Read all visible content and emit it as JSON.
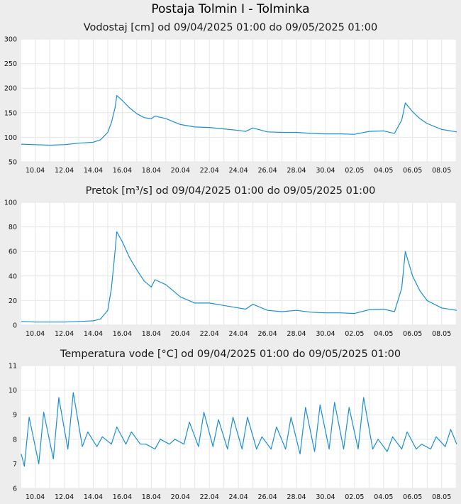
{
  "page": {
    "title": "Postaja Tolmin I - Tolminka"
  },
  "charts": [
    {
      "title": "Vodostaj [cm] od 09/04/2025 01:00 do 09/05/2025 01:00",
      "yticks": [
        "50",
        "100",
        "150",
        "200",
        "250",
        "300"
      ],
      "xticks": [
        "10.04",
        "12.04",
        "14.04",
        "16.04",
        "18.04",
        "20.04",
        "22.04",
        "24.04",
        "26.04",
        "28.04",
        "30.04",
        "02.05",
        "04.05",
        "06.05",
        "08.05"
      ],
      "line_color": "#1a8ed6"
    },
    {
      "title": "Pretok [m³/s] od 09/04/2025 01:00 do 09/05/2025 01:00",
      "yticks": [
        "0",
        "20",
        "40",
        "60",
        "80",
        "100"
      ],
      "xticks": [
        "10.04",
        "12.04",
        "14.04",
        "16.04",
        "18.04",
        "20.04",
        "22.04",
        "24.04",
        "26.04",
        "28.04",
        "30.04",
        "02.05",
        "04.05",
        "06.05",
        "08.05"
      ],
      "line_color": "#1a8ed6"
    },
    {
      "title": "Temperatura vode [°C] od 09/04/2025 01:00 do 09/05/2025 01:00",
      "yticks": [
        "6",
        "7",
        "8",
        "9",
        "10",
        "11"
      ],
      "xticks": [
        "10.04",
        "12.04",
        "14.04",
        "16.04",
        "18.04",
        "20.04",
        "22.04",
        "24.04",
        "26.04",
        "28.04",
        "30.04",
        "02.05",
        "04.05",
        "06.05",
        "08.05"
      ],
      "line_color": "#1a8ed6"
    }
  ],
  "chart_data": [
    {
      "type": "line",
      "title": "Vodostaj [cm] od 09/04/2025 01:00 do 09/05/2025 01:00",
      "ylim": [
        50,
        300
      ],
      "xlim": [
        "2025-04-09 01:00",
        "2025-05-09 01:00"
      ],
      "grid": true,
      "x": [
        "2025-04-09 01:00",
        "2025-04-10 00:00",
        "2025-04-11 00:00",
        "2025-04-12 00:00",
        "2025-04-13 00:00",
        "2025-04-14 00:00",
        "2025-04-14 12:00",
        "2025-04-15 00:00",
        "2025-04-15 06:00",
        "2025-04-15 12:00",
        "2025-04-15 15:00",
        "2025-04-16 00:00",
        "2025-04-16 12:00",
        "2025-04-17 00:00",
        "2025-04-17 12:00",
        "2025-04-18 00:00",
        "2025-04-18 06:00",
        "2025-04-19 00:00",
        "2025-04-20 00:00",
        "2025-04-21 00:00",
        "2025-04-22 00:00",
        "2025-04-23 00:00",
        "2025-04-24 00:00",
        "2025-04-24 12:00",
        "2025-04-25 00:00",
        "2025-04-26 00:00",
        "2025-04-27 00:00",
        "2025-04-28 00:00",
        "2025-04-29 00:00",
        "2025-04-30 00:00",
        "2025-05-01 00:00",
        "2025-05-02 00:00",
        "2025-05-03 00:00",
        "2025-05-04 00:00",
        "2025-05-04 18:00",
        "2025-05-05 06:00",
        "2025-05-05 12:00",
        "2025-05-06 00:00",
        "2025-05-06 12:00",
        "2025-05-07 00:00",
        "2025-05-08 00:00",
        "2025-05-09 01:00"
      ],
      "values": [
        86,
        85,
        84,
        85,
        88,
        90,
        95,
        110,
        130,
        160,
        185,
        175,
        160,
        148,
        140,
        138,
        143,
        138,
        126,
        121,
        120,
        117,
        114,
        112,
        119,
        111,
        110,
        110,
        108,
        107,
        107,
        106,
        112,
        113,
        108,
        135,
        170,
        152,
        138,
        128,
        116,
        111
      ]
    },
    {
      "type": "line",
      "title": "Pretok [m³/s] od 09/04/2025 01:00 do 09/05/2025 01:00",
      "ylim": [
        0,
        100
      ],
      "xlim": [
        "2025-04-09 01:00",
        "2025-05-09 01:00"
      ],
      "grid": true,
      "x": [
        "2025-04-09 01:00",
        "2025-04-10 00:00",
        "2025-04-11 00:00",
        "2025-04-12 00:00",
        "2025-04-13 00:00",
        "2025-04-14 00:00",
        "2025-04-14 12:00",
        "2025-04-15 00:00",
        "2025-04-15 06:00",
        "2025-04-15 12:00",
        "2025-04-15 15:00",
        "2025-04-16 00:00",
        "2025-04-16 12:00",
        "2025-04-17 00:00",
        "2025-04-17 12:00",
        "2025-04-18 00:00",
        "2025-04-18 06:00",
        "2025-04-19 00:00",
        "2025-04-20 00:00",
        "2025-04-21 00:00",
        "2025-04-22 00:00",
        "2025-04-23 00:00",
        "2025-04-24 00:00",
        "2025-04-24 12:00",
        "2025-04-25 00:00",
        "2025-04-26 00:00",
        "2025-04-27 00:00",
        "2025-04-28 00:00",
        "2025-04-29 00:00",
        "2025-04-30 00:00",
        "2025-05-01 00:00",
        "2025-05-02 00:00",
        "2025-05-03 00:00",
        "2025-05-04 00:00",
        "2025-05-04 18:00",
        "2025-05-05 06:00",
        "2025-05-05 12:00",
        "2025-05-06 00:00",
        "2025-05-06 12:00",
        "2025-05-07 00:00",
        "2025-05-08 00:00",
        "2025-05-09 01:00"
      ],
      "values": [
        3,
        2.5,
        2.5,
        2.5,
        3,
        3.5,
        5,
        12,
        30,
        60,
        76,
        68,
        55,
        45,
        36,
        31,
        37,
        33,
        23,
        18,
        18,
        16,
        14,
        13,
        17,
        12,
        11,
        12,
        10.5,
        10,
        10,
        9.5,
        12.5,
        13,
        11,
        30,
        60,
        40,
        28,
        20,
        14,
        12
      ]
    },
    {
      "type": "line",
      "title": "Temperatura vode [°C] od 09/04/2025 01:00 do 09/05/2025 01:00",
      "ylim": [
        6,
        11
      ],
      "xlim": [
        "2025-04-09 01:00",
        "2025-05-09 01:00"
      ],
      "grid": true,
      "x": [
        "2025-04-09 01:00",
        "2025-04-09 06:00",
        "2025-04-09 14:00",
        "2025-04-10 06:00",
        "2025-04-10 14:00",
        "2025-04-11 06:00",
        "2025-04-11 15:00",
        "2025-04-12 06:00",
        "2025-04-12 15:00",
        "2025-04-13 06:00",
        "2025-04-13 15:00",
        "2025-04-14 06:00",
        "2025-04-14 15:00",
        "2025-04-15 06:00",
        "2025-04-15 15:00",
        "2025-04-16 06:00",
        "2025-04-16 15:00",
        "2025-04-17 06:00",
        "2025-04-17 15:00",
        "2025-04-18 06:00",
        "2025-04-18 15:00",
        "2025-04-19 06:00",
        "2025-04-19 15:00",
        "2025-04-20 06:00",
        "2025-04-20 15:00",
        "2025-04-21 06:00",
        "2025-04-21 15:00",
        "2025-04-22 06:00",
        "2025-04-22 15:00",
        "2025-04-23 06:00",
        "2025-04-23 15:00",
        "2025-04-24 06:00",
        "2025-04-24 15:00",
        "2025-04-25 06:00",
        "2025-04-25 15:00",
        "2025-04-26 06:00",
        "2025-04-26 15:00",
        "2025-04-27 06:00",
        "2025-04-27 15:00",
        "2025-04-28 06:00",
        "2025-04-28 15:00",
        "2025-04-29 06:00",
        "2025-04-29 15:00",
        "2025-04-30 06:00",
        "2025-04-30 15:00",
        "2025-05-01 06:00",
        "2025-05-01 15:00",
        "2025-05-02 06:00",
        "2025-05-02 15:00",
        "2025-05-03 06:00",
        "2025-05-03 15:00",
        "2025-05-04 06:00",
        "2025-05-04 15:00",
        "2025-05-05 06:00",
        "2025-05-05 15:00",
        "2025-05-06 06:00",
        "2025-05-06 15:00",
        "2025-05-07 06:00",
        "2025-05-07 15:00",
        "2025-05-08 06:00",
        "2025-05-08 15:00",
        "2025-05-09 01:00"
      ],
      "values": [
        7.4,
        6.9,
        8.9,
        7.0,
        9.1,
        7.2,
        9.7,
        7.6,
        9.9,
        7.7,
        8.3,
        7.7,
        8.1,
        7.8,
        8.5,
        7.8,
        8.3,
        7.8,
        7.8,
        7.6,
        8.0,
        7.8,
        8.0,
        7.8,
        8.7,
        7.7,
        9.1,
        7.7,
        8.8,
        7.6,
        8.9,
        7.6,
        8.9,
        7.6,
        8.1,
        7.6,
        8.5,
        7.6,
        8.9,
        7.4,
        9.3,
        7.5,
        9.4,
        7.6,
        9.5,
        7.6,
        9.3,
        7.6,
        9.7,
        7.6,
        8.0,
        7.5,
        8.1,
        7.6,
        8.3,
        7.6,
        7.8,
        7.6,
        8.1,
        7.7,
        8.4,
        7.8
      ]
    }
  ]
}
